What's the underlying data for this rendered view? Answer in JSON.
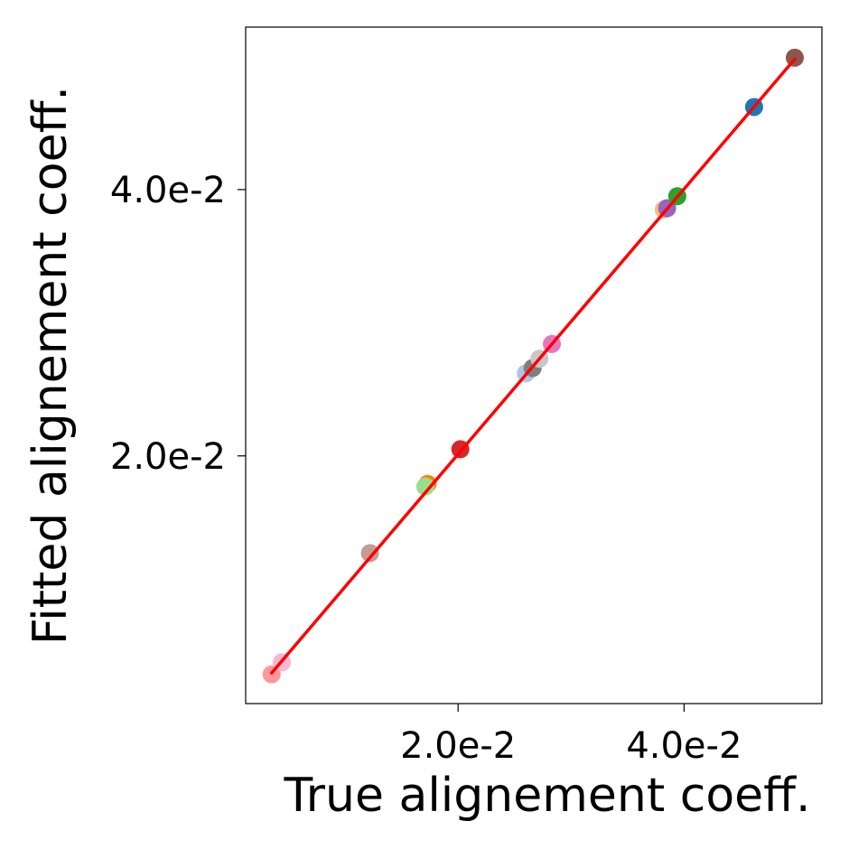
{
  "chart_data": {
    "type": "scatter",
    "xlabel": "True alignement coeff.",
    "ylabel": "Fitted alignement coeff.",
    "xlim": [
      0.0012,
      0.0522
    ],
    "ylim": [
      0.0014,
      0.0522
    ],
    "x_ticks": [
      {
        "value": 0.02,
        "label": "2.0e-2"
      },
      {
        "value": 0.04,
        "label": "4.0e-2"
      }
    ],
    "y_ticks": [
      {
        "value": 0.02,
        "label": "2.0e-2"
      },
      {
        "value": 0.04,
        "label": "4.0e-2"
      }
    ],
    "grid": false,
    "fit_line": {
      "x": [
        0.0035,
        0.0498
      ],
      "y": [
        0.0037,
        0.0498
      ],
      "color": "#ff0000"
    },
    "points": [
      {
        "x": 0.0035,
        "y": 0.0036,
        "color": "#ff9896"
      },
      {
        "x": 0.0044,
        "y": 0.0045,
        "color": "#f7b6d2"
      },
      {
        "x": 0.0122,
        "y": 0.0127,
        "color": "#c49c94"
      },
      {
        "x": 0.0173,
        "y": 0.0179,
        "color": "#ff7f0e"
      },
      {
        "x": 0.0171,
        "y": 0.0177,
        "color": "#98df8a"
      },
      {
        "x": 0.0202,
        "y": 0.0205,
        "color": "#d62728"
      },
      {
        "x": 0.026,
        "y": 0.0262,
        "color": "#aec7e8"
      },
      {
        "x": 0.0266,
        "y": 0.0266,
        "color": "#7f7f7f"
      },
      {
        "x": 0.0272,
        "y": 0.0273,
        "color": "#c7c7c7"
      },
      {
        "x": 0.0283,
        "y": 0.0284,
        "color": "#e377c2"
      },
      {
        "x": 0.0382,
        "y": 0.0385,
        "color": "#ffbb78"
      },
      {
        "x": 0.0385,
        "y": 0.0386,
        "color": "#9467bd"
      },
      {
        "x": 0.0394,
        "y": 0.0395,
        "color": "#2ca02c"
      },
      {
        "x": 0.0462,
        "y": 0.0462,
        "color": "#1f77b4"
      },
      {
        "x": 0.0498,
        "y": 0.0499,
        "color": "#8c564b"
      }
    ]
  }
}
